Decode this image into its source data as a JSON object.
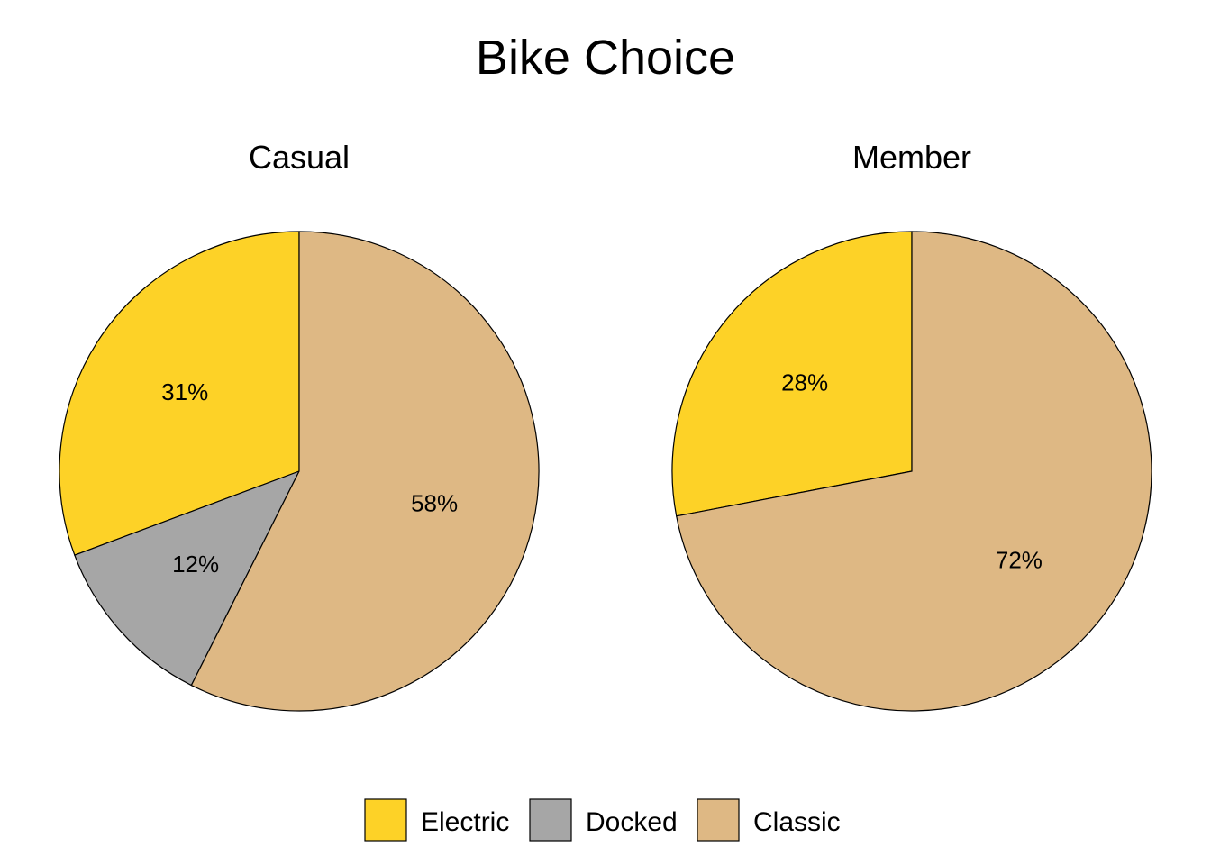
{
  "chart_data": {
    "type": "pie",
    "title": "Bike Choice",
    "legend": {
      "position": "bottom",
      "entries": [
        {
          "label": "Electric",
          "color": "#FDD227"
        },
        {
          "label": "Docked",
          "color": "#A6A6A6"
        },
        {
          "label": "Classic",
          "color": "#DEB884"
        }
      ]
    },
    "pies": [
      {
        "name": "Casual",
        "slices": [
          {
            "label": "Electric",
            "value": 31,
            "text": "31%"
          },
          {
            "label": "Docked",
            "value": 12,
            "text": "12%"
          },
          {
            "label": "Classic",
            "value": 58,
            "text": "58%"
          }
        ]
      },
      {
        "name": "Member",
        "slices": [
          {
            "label": "Electric",
            "value": 28,
            "text": "28%"
          },
          {
            "label": "Docked",
            "value": 0,
            "text": ""
          },
          {
            "label": "Classic",
            "value": 72,
            "text": "72%"
          }
        ]
      }
    ]
  }
}
